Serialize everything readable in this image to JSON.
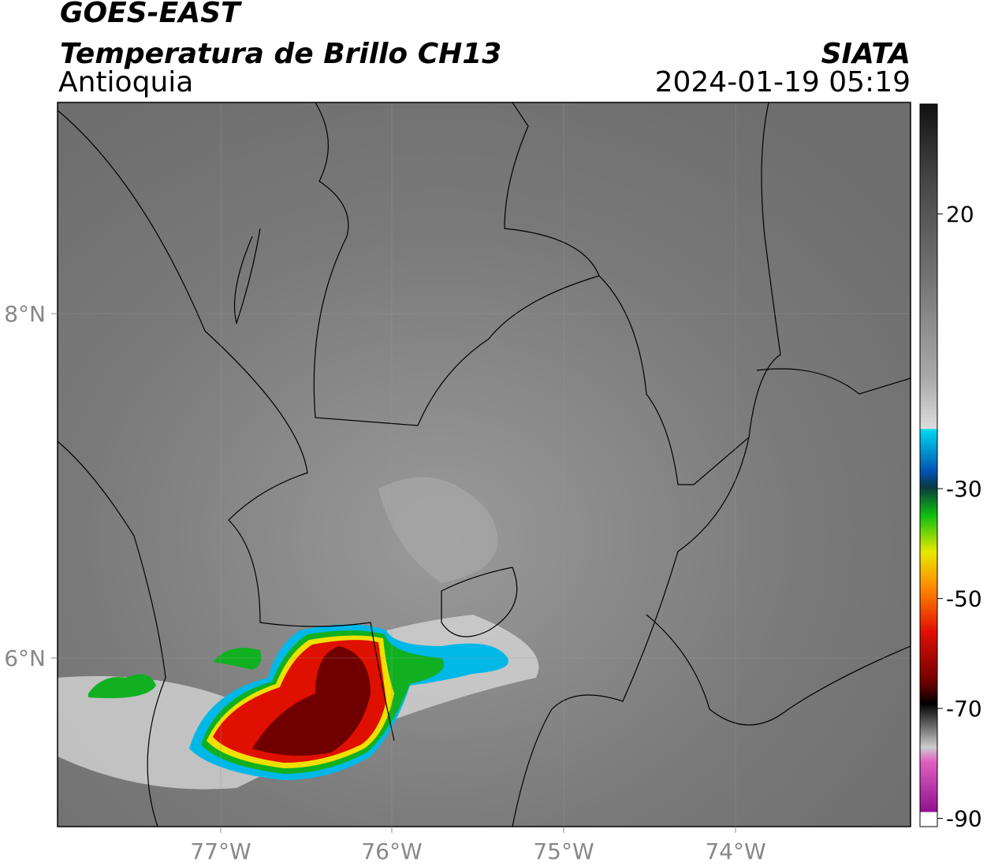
{
  "header": {
    "title": "GOES-EAST",
    "subtitle": "Temperatura de Brillo CH13",
    "region": "Antioquia",
    "source": "SIATA",
    "datetime": "2024-01-19 05:19"
  },
  "map": {
    "lon_labels": [
      "77°W",
      "76°W",
      "75°W",
      "74°W"
    ],
    "lat_labels": [
      "8°N",
      "6°N"
    ]
  },
  "colorbar": {
    "lim": [
      -91.5,
      40
    ],
    "ticks": [
      20,
      -30,
      -50,
      -70,
      -90
    ]
  }
}
